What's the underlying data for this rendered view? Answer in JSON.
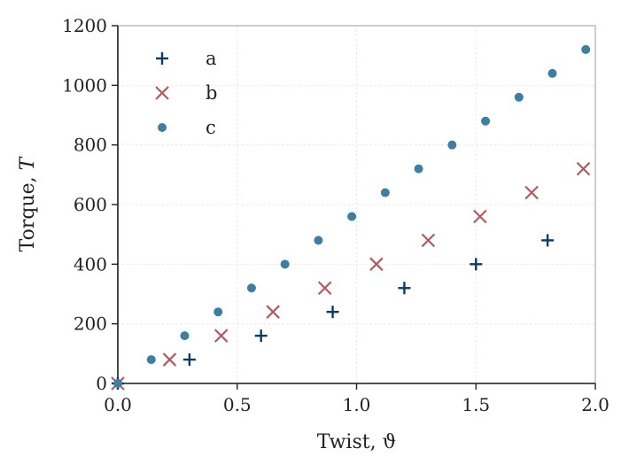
{
  "chart_data": {
    "type": "scatter",
    "title": "",
    "xlabel": "Twist, ϑ",
    "ylabel_text": "Torque, ",
    "ylabel_symbol": "T",
    "xlim": [
      0.0,
      2.0
    ],
    "ylim": [
      0,
      1200
    ],
    "xticks": [
      "0.0",
      "0.5",
      "1.0",
      "1.5",
      "2.0"
    ],
    "yticks": [
      "0",
      "200",
      "400",
      "600",
      "800",
      "1000",
      "1200"
    ],
    "grid": true,
    "legend_position": "top-left",
    "series": [
      {
        "name": "a",
        "marker": "plus",
        "color": "#0b3a63",
        "x": [
          0.0,
          0.3,
          0.6,
          0.9,
          1.2,
          1.5,
          1.8
        ],
        "y": [
          0,
          80,
          160,
          240,
          320,
          400,
          480
        ]
      },
      {
        "name": "b",
        "marker": "x",
        "color": "#b05a5f",
        "x": [
          0.0,
          0.217,
          0.433,
          0.65,
          0.867,
          1.083,
          1.3,
          1.517,
          1.733,
          1.95
        ],
        "y": [
          0,
          80,
          160,
          240,
          320,
          400,
          480,
          560,
          640,
          720
        ]
      },
      {
        "name": "c",
        "marker": "circle",
        "color": "#3c7fa2",
        "x": [
          0.0,
          0.14,
          0.28,
          0.42,
          0.56,
          0.7,
          0.84,
          0.98,
          1.12,
          1.26,
          1.4,
          1.54,
          1.68,
          1.82,
          1.96
        ],
        "y": [
          0,
          80,
          160,
          240,
          320,
          400,
          480,
          560,
          640,
          720,
          800,
          880,
          960,
          1040,
          1120
        ]
      }
    ]
  }
}
